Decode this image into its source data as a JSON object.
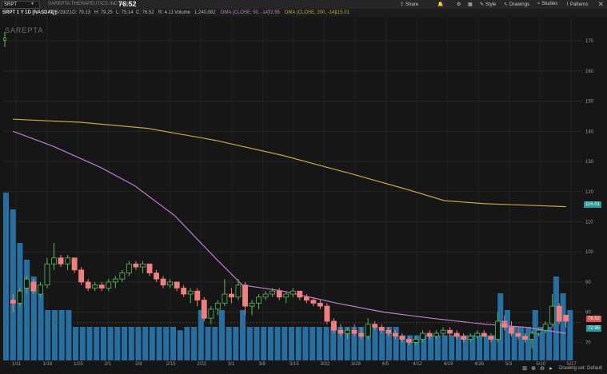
{
  "toolbar": {
    "symbol": "SRPT",
    "company": "SAREPTA THERAPEUTICS INC COM",
    "price": "76.52",
    "share": "Share",
    "style": "Style",
    "drawings": "Drawings",
    "studies": "Studies",
    "patterns": "Patterns"
  },
  "info": {
    "title": "SRPT 1 Y 1D [NASDAQ]",
    "date": "D: 5/19/21",
    "open": "O: 79.13",
    "high": "H: 79.25",
    "low": "L: 75.14",
    "close": "C: 76.52",
    "range": "R: 4.11",
    "volume_label": "Volume",
    "volume": "1,240,082",
    "dma50_label": "DMA (CLOSE, 50, -14)",
    "dma50": "72.95",
    "dma200_label": "DMA (CLOSE, 200, -14)",
    "dma200": "115.01"
  },
  "watermark": "SAREPTA",
  "tags": {
    "dma200": "115.01",
    "price": "76.52",
    "dma50": "72.95"
  },
  "status": "Drawing set: Default",
  "colors": {
    "up": "#5cb85c",
    "down": "#f08080",
    "dma50": "#c27bd8",
    "dma200": "#c9a44a",
    "volume": "#2a7fb8",
    "background": "#161616"
  },
  "chart_data": {
    "type": "candlestick",
    "y_ticks": [
      "70",
      "80",
      "90",
      "100",
      "110",
      "120",
      "130",
      "140",
      "150",
      "160",
      "170"
    ],
    "x_ticks": [
      "1/11",
      "1/18",
      "1/25",
      "2/1",
      "2/8",
      "2/15",
      "2/22",
      "3/1",
      "3/8",
      "3/15",
      "3/22",
      "3/29",
      "4/5",
      "4/12",
      "4/19",
      "4/26",
      "5/3",
      "5/10",
      "5/17"
    ],
    "ylim": [
      64,
      178
    ],
    "candles": [
      [
        84,
        86,
        80,
        83
      ],
      [
        83,
        88,
        82,
        87
      ],
      [
        88,
        92,
        86,
        91
      ],
      [
        90,
        91,
        86,
        87
      ],
      [
        86,
        90,
        85,
        89
      ],
      [
        89,
        98,
        88,
        96
      ],
      [
        96,
        103,
        94,
        98
      ],
      [
        98,
        99,
        95,
        96
      ],
      [
        96,
        99,
        94,
        98
      ],
      [
        98,
        98,
        93,
        94
      ],
      [
        94,
        95,
        89,
        90
      ],
      [
        90,
        91,
        87,
        88
      ],
      [
        88,
        90,
        87,
        89
      ],
      [
        89,
        90,
        87,
        88
      ],
      [
        88,
        91,
        87,
        90
      ],
      [
        90,
        92,
        88,
        91
      ],
      [
        91,
        94,
        90,
        93
      ],
      [
        93,
        97,
        92,
        96
      ],
      [
        96,
        97,
        94,
        95
      ],
      [
        95,
        97,
        93,
        96
      ],
      [
        96,
        96,
        92,
        93
      ],
      [
        93,
        94,
        90,
        91
      ],
      [
        91,
        92,
        88,
        89
      ],
      [
        89,
        91,
        88,
        90
      ],
      [
        90,
        90,
        87,
        88
      ],
      [
        88,
        89,
        85,
        86
      ],
      [
        86,
        88,
        83,
        87
      ],
      [
        87,
        88,
        82,
        84
      ],
      [
        84,
        85,
        77,
        78
      ],
      [
        78,
        82,
        76,
        81
      ],
      [
        81,
        84,
        79,
        83
      ],
      [
        83,
        91,
        82,
        86
      ],
      [
        86,
        88,
        83,
        85
      ],
      [
        85,
        91,
        84,
        89
      ],
      [
        89,
        90,
        79,
        82
      ],
      [
        82,
        84,
        79,
        83
      ],
      [
        83,
        86,
        81,
        85
      ],
      [
        85,
        87,
        84,
        86
      ],
      [
        86,
        88,
        85,
        87
      ],
      [
        87,
        88,
        84,
        85
      ],
      [
        85,
        87,
        83,
        86
      ],
      [
        86,
        88,
        85,
        87
      ],
      [
        87,
        87,
        84,
        85
      ],
      [
        85,
        86,
        83,
        84
      ],
      [
        84,
        85,
        82,
        83
      ],
      [
        83,
        84,
        81,
        82
      ],
      [
        82,
        83,
        76,
        77
      ],
      [
        77,
        78,
        73,
        74
      ],
      [
        74,
        76,
        72,
        73
      ],
      [
        73,
        75,
        71,
        74
      ],
      [
        74,
        76,
        72,
        73
      ],
      [
        73,
        75,
        71,
        72
      ],
      [
        72,
        78,
        71,
        76
      ],
      [
        76,
        77,
        74,
        75
      ],
      [
        75,
        76,
        73,
        74
      ],
      [
        74,
        75,
        72,
        73
      ],
      [
        73,
        74,
        71,
        72
      ],
      [
        72,
        73,
        70,
        71
      ],
      [
        71,
        72,
        69,
        70
      ],
      [
        70,
        72,
        69,
        71
      ],
      [
        71,
        74,
        70,
        73
      ],
      [
        73,
        74,
        71,
        72
      ],
      [
        72,
        74,
        71,
        73
      ],
      [
        73,
        75,
        72,
        74
      ],
      [
        74,
        75,
        72,
        73
      ],
      [
        73,
        74,
        71,
        72
      ],
      [
        72,
        73,
        70,
        71
      ],
      [
        71,
        73,
        70,
        72
      ],
      [
        72,
        74,
        71,
        73
      ],
      [
        73,
        74,
        72,
        72
      ],
      [
        72,
        73,
        70,
        71
      ],
      [
        71,
        80,
        70,
        77
      ],
      [
        77,
        79,
        74,
        75
      ],
      [
        75,
        77,
        72,
        73
      ],
      [
        73,
        75,
        71,
        72
      ],
      [
        72,
        73,
        70,
        71
      ],
      [
        71,
        74,
        68,
        73
      ],
      [
        73,
        75,
        72,
        74
      ],
      [
        74,
        77,
        73,
        76
      ],
      [
        76,
        86,
        75,
        82
      ],
      [
        82,
        83,
        76,
        77
      ],
      [
        79,
        79,
        75,
        77
      ]
    ],
    "dma50": [
      [
        0,
        140
      ],
      [
        6,
        135
      ],
      [
        13,
        128
      ],
      [
        18,
        122
      ],
      [
        24,
        112
      ],
      [
        30,
        98
      ],
      [
        34,
        89
      ],
      [
        40,
        87
      ],
      [
        48,
        83
      ],
      [
        55,
        80
      ],
      [
        62,
        78
      ],
      [
        70,
        76
      ],
      [
        76,
        75
      ],
      [
        82,
        73
      ]
    ],
    "dma200": [
      [
        0,
        144
      ],
      [
        10,
        143
      ],
      [
        20,
        141
      ],
      [
        30,
        137
      ],
      [
        40,
        132
      ],
      [
        50,
        126
      ],
      [
        58,
        121
      ],
      [
        64,
        117
      ],
      [
        70,
        116
      ],
      [
        76,
        115.5
      ],
      [
        82,
        115
      ]
    ],
    "volume": [
      10,
      9,
      7,
      6,
      5,
      4,
      3,
      3,
      3,
      3,
      2,
      2,
      2,
      2,
      2,
      2,
      2,
      2,
      2,
      2,
      2,
      2,
      2,
      2,
      2,
      1.8,
      2,
      2,
      3,
      2,
      2,
      3,
      2,
      2,
      3,
      2,
      2,
      2,
      2,
      2,
      2,
      2,
      2,
      2,
      2,
      2,
      2,
      2,
      2,
      2,
      2,
      2,
      2,
      2,
      2,
      2,
      2,
      1.5,
      1.5,
      1.5,
      1.5,
      1.5,
      1.5,
      1.5,
      1.5,
      1.5,
      1.5,
      1.5,
      1.5,
      1.5,
      1.5,
      4,
      3,
      2,
      2,
      2,
      3,
      2,
      2,
      5,
      4,
      3
    ]
  }
}
